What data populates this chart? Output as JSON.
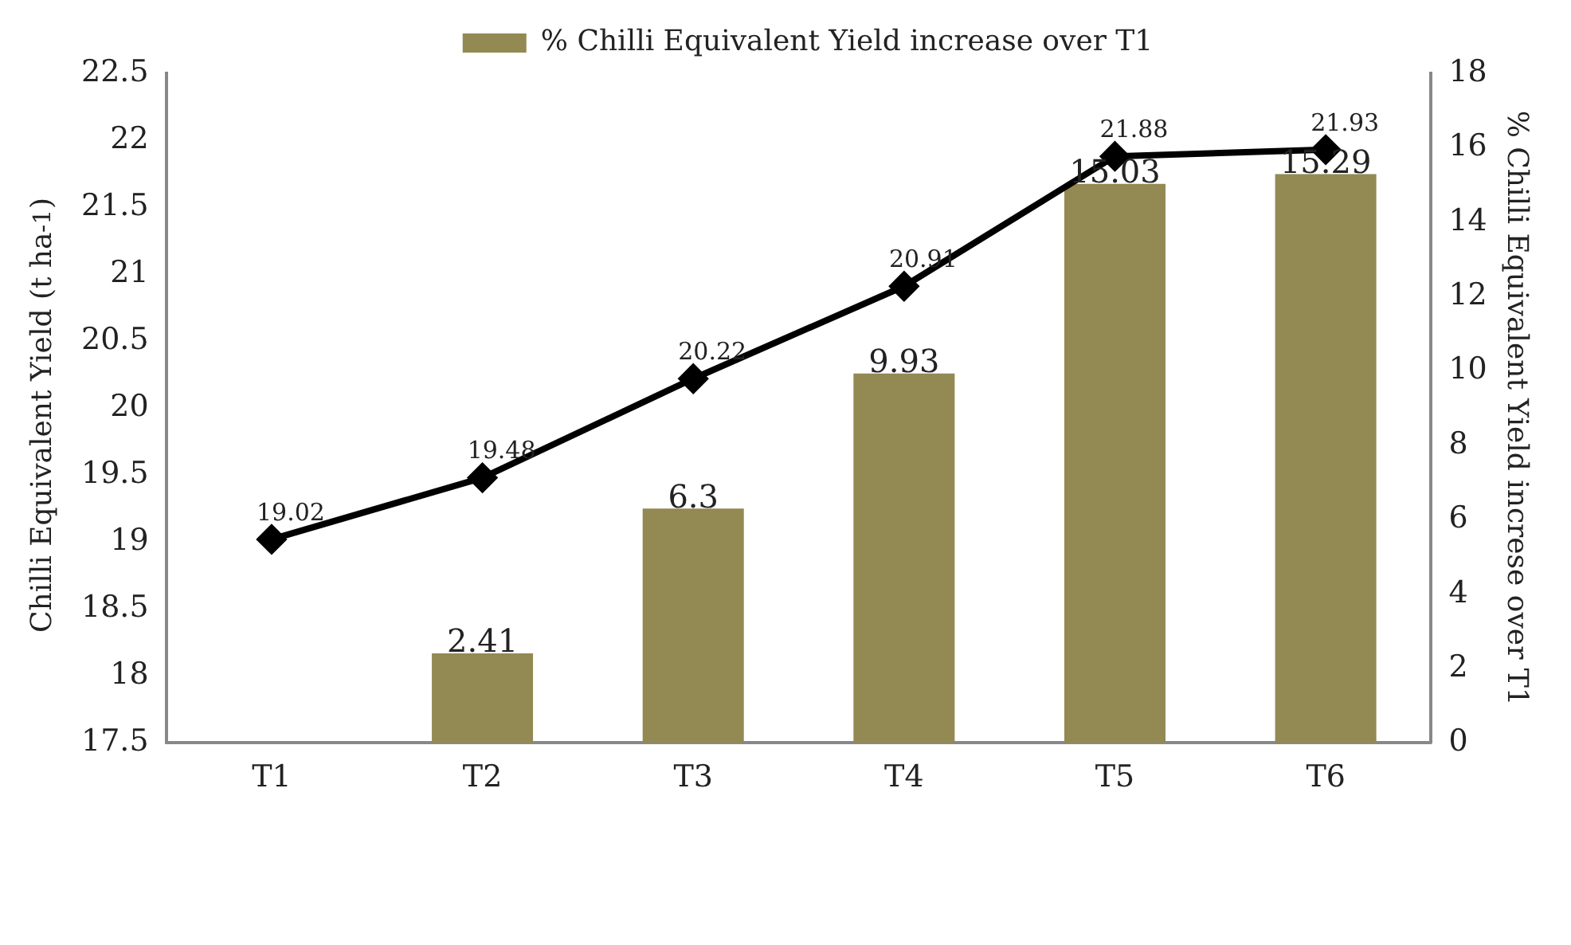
{
  "chart_data": {
    "type": "bar",
    "categories": [
      "T1",
      "T2",
      "T3",
      "T4",
      "T5",
      "T6"
    ],
    "series": [
      {
        "name": "% Chilli Equivalent Yield increase over T1",
        "axis": "y2",
        "color": "#938953",
        "values": [
          null,
          2.41,
          6.3,
          9.93,
          15.03,
          15.29
        ]
      },
      {
        "type": "line",
        "color": "#000000",
        "values": [
          19.02,
          19.48,
          20.22,
          20.91,
          21.88,
          21.93
        ]
      }
    ],
    "ylabel": "Chilli Equivalent Yield (t ha$^{-1}$)",
    "y2label": "% Chilli Equivalent Yield increse over T1",
    "ylim": [
      17.5,
      22.5
    ],
    "yticks": [
      17.5,
      18,
      18.5,
      19,
      19.5,
      20,
      20.5,
      21,
      21.5,
      22,
      22.5
    ],
    "y2lim": [
      0,
      18
    ],
    "y2ticks": [
      0,
      2,
      4,
      6,
      8,
      10,
      12,
      14,
      16,
      18
    ],
    "marker": "diamond",
    "grid": false,
    "legend": "top",
    "data_labels": true
  }
}
